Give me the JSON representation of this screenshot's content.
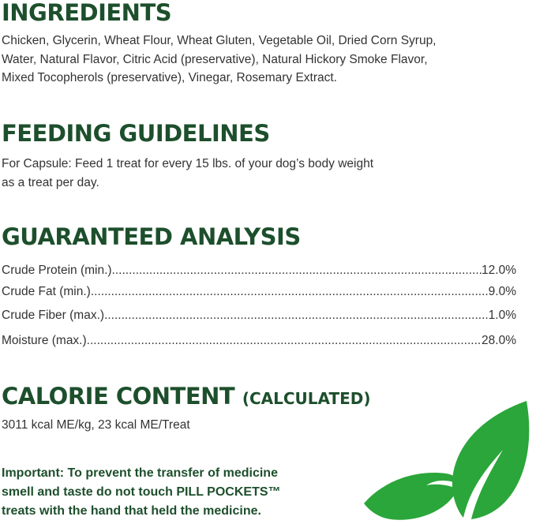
{
  "ingredients": {
    "heading": "INGREDIENTS",
    "lines": [
      "Chicken, Glycerin, Wheat Flour, Wheat Gluten, Vegetable Oil, Dried Corn Syrup,",
      "Water, Natural Flavor, Citric Acid (preservative), Natural Hickory Smoke Flavor,",
      "Mixed Tocopherols (preservative), Vinegar, Rosemary Extract."
    ]
  },
  "feeding": {
    "heading": "FEEDING GUIDELINES",
    "lines": [
      "For Capsule: Feed 1 treat for every 15 lbs. of your dog’s body weight",
      "as a treat per day."
    ]
  },
  "analysis": {
    "heading": "GUARANTEED ANALYSIS",
    "rows": [
      {
        "label": "Crude Protein (min.)",
        "value": "12.0%"
      },
      {
        "label": "Crude Fat (min.)",
        "value": "9.0%"
      },
      {
        "label": "Crude Fiber (max.)",
        "value": "1.0%"
      },
      {
        "label": "Moisture (max.)",
        "value": "28.0%"
      }
    ]
  },
  "calorie": {
    "heading": "CALORIE CONTENT",
    "subheading": "(CALCULATED)",
    "text": "3011 kcal ME/kg, 23 kcal ME/Treat"
  },
  "important": {
    "line1": "Important: To prevent the transfer of medicine",
    "line2_pre": "smell and taste do not touch ",
    "brand": "PILL POCKETS™",
    "line3": "treats with the hand that held the medicine."
  },
  "colors": {
    "heading": "#1d4f2c",
    "leaf": "#2ba63a",
    "text": "#333333"
  },
  "decoration": {
    "icon": "leaves-icon"
  }
}
